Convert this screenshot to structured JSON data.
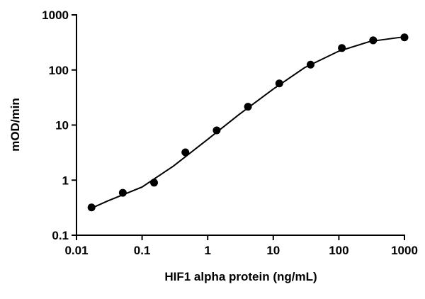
{
  "chart_data": {
    "type": "scatter",
    "x_label": "HIF1 alpha protein (ng/mL)",
    "y_label": "mOD/min",
    "xlog": true,
    "ylog": true,
    "xlim": [
      0.01,
      1000
    ],
    "ylim": [
      0.1,
      1000
    ],
    "xticks": [
      0.01,
      0.1,
      1,
      10,
      100,
      1000
    ],
    "yticks": [
      0.1,
      1,
      10,
      100,
      1000
    ],
    "series": [
      {
        "color": "#000000",
        "marker": "circle",
        "x": [
          0.01694,
          0.0508,
          0.1524,
          0.4572,
          1.372,
          4.115,
          12.35,
          37.04,
          111.1,
          333.3,
          1000
        ],
        "values": [
          0.32,
          0.59,
          0.9,
          3.2,
          8.0,
          21.5,
          57,
          125,
          250,
          345,
          390
        ]
      },
      {
        "color": "#000000",
        "marker": "line",
        "x": [
          0.01694,
          0.03,
          0.1,
          0.3,
          1,
          3,
          10,
          30,
          100,
          300,
          1000
        ],
        "values": [
          0.31,
          0.42,
          0.75,
          1.8,
          5.5,
          15.5,
          45,
          110,
          220,
          330,
          400
        ]
      }
    ]
  }
}
